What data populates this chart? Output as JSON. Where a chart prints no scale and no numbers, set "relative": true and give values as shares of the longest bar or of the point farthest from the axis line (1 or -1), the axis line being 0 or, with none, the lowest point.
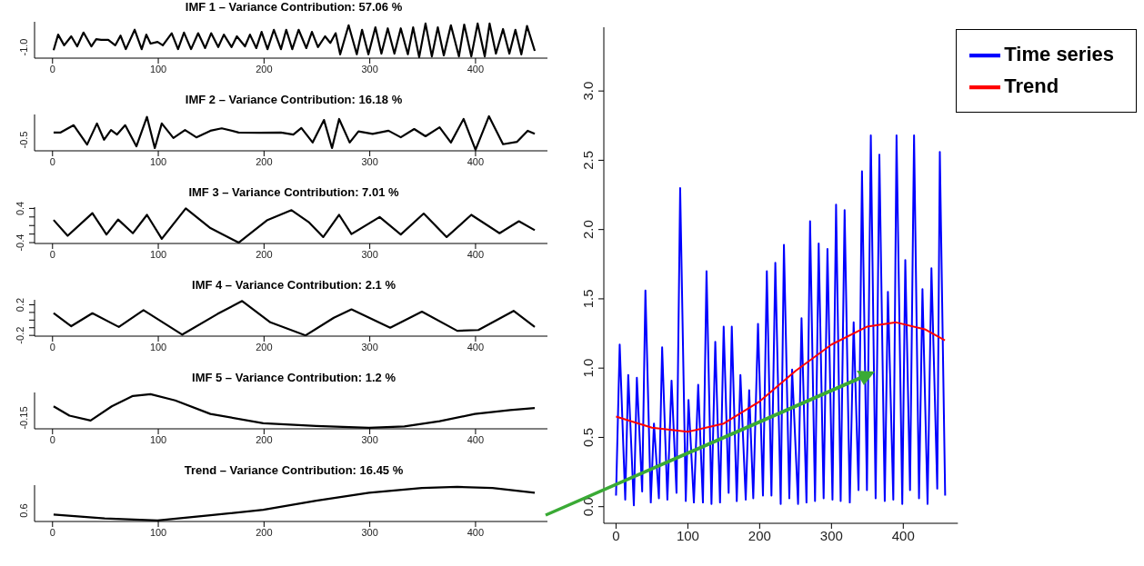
{
  "chart_data": [
    {
      "type": "line",
      "title": "IMF 1 – Variance Contribution:  57.06 %",
      "relative": true,
      "annotations": [
        "-1.0"
      ],
      "xlim": [
        -17,
        468
      ],
      "xticks": [
        0,
        100,
        200,
        300,
        400
      ],
      "x": [
        1,
        5.3,
        11,
        17.7,
        23.3,
        29.3,
        36.7,
        41.3,
        46,
        52.7,
        59.3,
        64.3,
        69.3,
        77.7,
        84.3,
        88.7,
        92.7,
        99.3,
        104.3,
        112.7,
        118.7,
        124.3,
        131,
        137.7,
        144.3,
        150,
        156.7,
        162,
        169.3,
        174.3,
        182,
        186.7,
        192.7,
        197.7,
        203.3,
        209.3,
        216,
        221,
        226.7,
        232.7,
        240,
        245.3,
        251,
        257.7,
        262.7,
        267.7,
        272,
        280,
        287.7,
        292.7,
        298.7,
        305.3,
        311,
        317,
        323.3,
        329.3,
        336,
        341,
        346.7,
        352.7,
        358.7,
        364.3,
        370,
        376.7,
        384.3,
        389.3,
        396,
        402,
        408.7,
        413.3,
        419.3,
        426,
        432,
        437.7,
        443.3,
        448.7,
        456
      ],
      "series": [
        {
          "color": "#000000",
          "values": [
            0.23,
            0.68,
            0.37,
            0.63,
            0.34,
            0.74,
            0.34,
            0.55,
            0.53,
            0.53,
            0.37,
            0.65,
            0.26,
            0.82,
            0.26,
            0.68,
            0.42,
            0.47,
            0.37,
            0.72,
            0.26,
            0.74,
            0.26,
            0.72,
            0.29,
            0.72,
            0.32,
            0.68,
            0.32,
            0.63,
            0.34,
            0.68,
            0.29,
            0.76,
            0.26,
            0.82,
            0.26,
            0.82,
            0.26,
            0.82,
            0.29,
            0.76,
            0.32,
            0.63,
            0.44,
            0.72,
            0.11,
            0.95,
            0.11,
            0.82,
            0.11,
            0.89,
            0.13,
            0.86,
            0.13,
            0.86,
            0.11,
            0.89,
            0.03,
            1,
            0.05,
            0.89,
            0.08,
            0.95,
            0.05,
            0.97,
            0.05,
            1,
            0.05,
            1,
            0.13,
            0.84,
            0.13,
            0.82,
            0.11,
            0.93,
            0.21
          ]
        }
      ]
    },
    {
      "type": "line",
      "title": "IMF 2 – Variance Contribution:  16.18 %",
      "relative": true,
      "annotations": [
        "-0.5"
      ],
      "xlim": [
        -17,
        468
      ],
      "xticks": [
        0,
        100,
        200,
        300,
        400
      ],
      "x": [
        1,
        7.7,
        20,
        32.7,
        42,
        48.7,
        55.3,
        61,
        68.7,
        79.3,
        89.3,
        96.7,
        103.3,
        114.3,
        125.3,
        136,
        149.3,
        160,
        176,
        196,
        216,
        227.7,
        235.3,
        246,
        256.7,
        264.3,
        271,
        281,
        289.3,
        302.7,
        317.7,
        329.3,
        342,
        352.7,
        366,
        376.7,
        388.7,
        400,
        412.7,
        426,
        439.3,
        449.3,
        456
      ],
      "series": [
        {
          "color": "#000000",
          "values": [
            0.53,
            0.53,
            0.74,
            0.18,
            0.79,
            0.32,
            0.6,
            0.47,
            0.74,
            0.13,
            0.98,
            0.08,
            0.79,
            0.37,
            0.6,
            0.39,
            0.58,
            0.65,
            0.53,
            0.52,
            0.53,
            0.47,
            0.66,
            0.24,
            0.89,
            0.08,
            0.92,
            0.24,
            0.56,
            0.49,
            0.58,
            0.39,
            0.63,
            0.42,
            0.68,
            0.24,
            0.92,
            0.03,
            1,
            0.19,
            0.26,
            0.58,
            0.49
          ]
        }
      ]
    },
    {
      "type": "line",
      "title": "IMF 3 – Variance Contribution:  7.01 %",
      "xlim": [
        -17,
        468
      ],
      "xticks": [
        0,
        100,
        200,
        300,
        400
      ],
      "ylim": [
        -0.42,
        0.43
      ],
      "yticks": [
        {
          "value": -0.4,
          "label": "-0.4"
        },
        {
          "value": -0.2,
          "label": null
        },
        {
          "value": 0,
          "label": null
        },
        {
          "value": 0.2,
          "label": null
        },
        {
          "value": 0.4,
          "label": "0.4"
        }
      ],
      "x": [
        1,
        14.3,
        37.7,
        51,
        62,
        76,
        89.3,
        103.3,
        126,
        149.3,
        176,
        202.7,
        226,
        242.7,
        256,
        271,
        282.7,
        309.3,
        329.3,
        351,
        372.7,
        396,
        422.7,
        441,
        456
      ],
      "series": [
        {
          "color": "#000000",
          "values": [
            0.13,
            -0.24,
            0.29,
            -0.21,
            0.14,
            -0.18,
            0.25,
            -0.31,
            0.4,
            -0.06,
            -0.4,
            0.12,
            0.36,
            0.07,
            -0.27,
            0.25,
            -0.2,
            0.2,
            -0.21,
            0.28,
            -0.27,
            0.25,
            -0.18,
            0.1,
            -0.11
          ]
        }
      ]
    },
    {
      "type": "line",
      "title": "IMF 4 – Variance Contribution:  2.1 %",
      "xlim": [
        -17,
        468
      ],
      "xticks": [
        0,
        100,
        200,
        300,
        400
      ],
      "ylim": [
        -0.21,
        0.265
      ],
      "yticks": [
        {
          "value": -0.2,
          "label": "-0.2"
        },
        {
          "value": -0.1,
          "label": null
        },
        {
          "value": 0,
          "label": null
        },
        {
          "value": 0.1,
          "label": null
        },
        {
          "value": 0.2,
          "label": "0.2"
        }
      ],
      "x": [
        1,
        17.7,
        37.7,
        62.7,
        86,
        122.7,
        156,
        179.3,
        206,
        239.3,
        266,
        282.7,
        319.3,
        349.3,
        382.7,
        402.7,
        436,
        456
      ],
      "series": [
        {
          "color": "#000000",
          "values": [
            0.09,
            -0.08,
            0.09,
            -0.09,
            0.13,
            -0.19,
            0.08,
            0.25,
            -0.03,
            -0.2,
            0.03,
            0.14,
            -0.1,
            0.11,
            -0.14,
            -0.13,
            0.12,
            -0.09
          ]
        }
      ]
    },
    {
      "type": "line",
      "title": "IMF 5 – Variance Contribution:  1.2 %",
      "relative": true,
      "annotations": [
        "-0.15"
      ],
      "xlim": [
        -17,
        468
      ],
      "xticks": [
        0,
        100,
        200,
        300,
        400
      ],
      "x": [
        1,
        16,
        36,
        56,
        76,
        92.7,
        116,
        149.3,
        199.3,
        249.3,
        299.3,
        332.7,
        366,
        399.3,
        432.7,
        456
      ],
      "series": [
        {
          "color": "#000000",
          "values": [
            0.65,
            0.38,
            0.24,
            0.65,
            0.95,
            1,
            0.82,
            0.43,
            0.16,
            0.08,
            0.03,
            0.07,
            0.22,
            0.43,
            0.54,
            0.6
          ]
        }
      ]
    },
    {
      "type": "line",
      "title": "Trend – Variance Contribution:  16.45 %",
      "relative": true,
      "annotations": [
        "0.6"
      ],
      "xlim": [
        -17,
        468
      ],
      "xticks": [
        0,
        100,
        200,
        300,
        400
      ],
      "x": [
        1,
        49.3,
        99.3,
        149.3,
        199.3,
        249.3,
        299.3,
        349.3,
        382.7,
        416,
        456
      ],
      "series": [
        {
          "color": "#000000",
          "values": [
            0.2,
            0.09,
            0.03,
            0.18,
            0.34,
            0.6,
            0.83,
            0.97,
            1,
            0.97,
            0.83
          ]
        }
      ]
    },
    {
      "type": "line",
      "legend": "top right",
      "xlim": [
        -17,
        476
      ],
      "xticks": [
        0,
        100,
        200,
        300,
        400
      ],
      "ylim": [
        -0.12,
        3.46
      ],
      "yticks": [
        {
          "value": 0,
          "label": "0.0"
        },
        {
          "value": 0.5,
          "label": "0.5"
        },
        {
          "value": 1,
          "label": "1.0"
        },
        {
          "value": 1.5,
          "label": "1.5"
        },
        {
          "value": 2,
          "label": "2.0"
        },
        {
          "value": 2.5,
          "label": "2.5"
        },
        {
          "value": 3,
          "label": "3.0"
        }
      ],
      "series": [
        {
          "name": "Time series",
          "color": "#0000ff",
          "x": [
            0,
            5.1,
            12.8,
            17,
            24.8,
            29,
            36.4,
            40.9,
            48.4,
            52.8,
            59.7,
            64.2,
            71.5,
            77.3,
            84.2,
            89.3,
            97.1,
            100.9,
            108.4,
            114.4,
            121,
            126,
            132.9,
            138.2,
            144.8,
            149.9,
            156.8,
            161.2,
            168.1,
            173.2,
            180.6,
            185.4,
            191.1,
            197.7,
            204.6,
            210,
            216.4,
            221.8,
            229.3,
            233.8,
            241.3,
            245.2,
            253.5,
            258.3,
            265.2,
            270.2,
            277.1,
            282.2,
            289.1,
            294.4,
            301.4,
            306.4,
            312.8,
            318.3,
            325.5,
            330.9,
            337.7,
            342.5,
            349.4,
            354.8,
            361.5,
            366.7,
            374.2,
            378.6,
            386.1,
            390.6,
            398.6,
            402.8,
            409.4,
            415,
            421.9,
            426.7,
            433.8,
            439.2,
            447.3,
            450.9,
            458.3
          ],
          "values": [
            0.08,
            1.17,
            0.05,
            0.95,
            0.01,
            0.93,
            0.11,
            1.56,
            0.03,
            0.6,
            0.06,
            1.15,
            0.05,
            0.91,
            0.1,
            2.3,
            0.04,
            0.77,
            0.03,
            0.88,
            0.03,
            1.7,
            0.02,
            1.19,
            0.03,
            1.3,
            0.1,
            1.3,
            0.04,
            0.95,
            0.05,
            0.84,
            0.06,
            1.32,
            0.08,
            1.7,
            0.08,
            1.76,
            0.02,
            1.89,
            0.06,
            0.99,
            0.02,
            1.36,
            0.03,
            2.06,
            0.04,
            1.9,
            0.06,
            1.86,
            0.05,
            2.18,
            0.04,
            2.14,
            0.03,
            1.33,
            0.12,
            2.42,
            0.12,
            2.68,
            0.06,
            2.54,
            0.04,
            1.55,
            0.05,
            2.68,
            0.02,
            1.78,
            0.12,
            2.68,
            0.06,
            1.57,
            0.02,
            1.72,
            0.13,
            2.56,
            0.08
          ]
        },
        {
          "name": "Trend",
          "color": "#ff0000",
          "x": [
            0,
            50,
            100,
            150,
            200,
            250,
            300,
            350,
            390,
            430,
            458
          ],
          "values": [
            0.65,
            0.57,
            0.54,
            0.6,
            0.76,
            0.98,
            1.17,
            1.3,
            1.33,
            1.28,
            1.2
          ]
        }
      ]
    }
  ]
}
